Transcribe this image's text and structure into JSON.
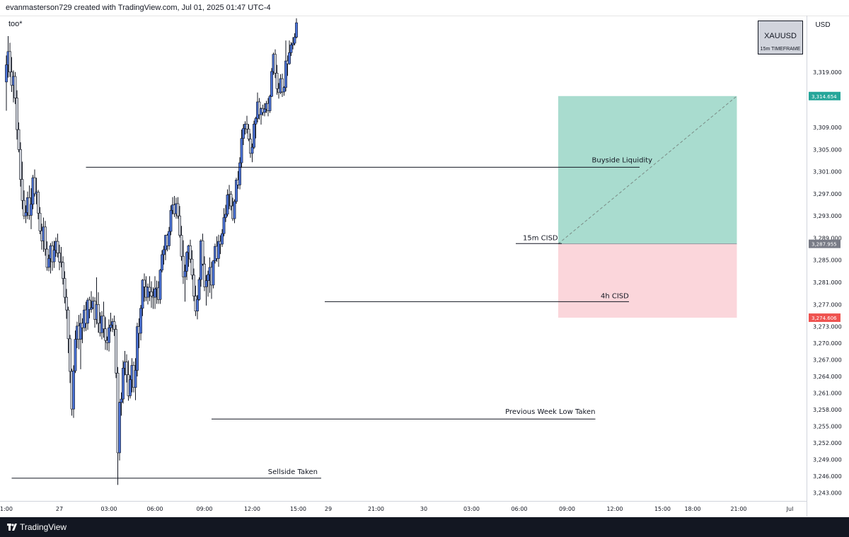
{
  "header": {
    "attribution": "evanmasterson729 created with TradingView.com, Jul 01, 2025 01:47 UTC-4",
    "chart_name": "too*",
    "currency": "USD"
  },
  "footer": {
    "brand": "TradingView"
  },
  "symbol_box": {
    "symbol": "XAUUSD",
    "timeframe": "15m TIMEFRAME"
  },
  "colors": {
    "up_candle": "#4a72d8",
    "down_candle": "#d1d4dc",
    "wick": "#131722",
    "target_zone": "#a9dccf",
    "stop_zone": "#fbd6db",
    "target_badge": "#26a69a",
    "entry_badge": "#787b86",
    "stop_badge": "#ef5350"
  },
  "chart_data": {
    "type": "candlestick",
    "symbol": "XAUUSD",
    "timeframe": "15m",
    "ylim": [
      3241.5,
      3329.2
    ],
    "y_ticks": [
      "3,319.000",
      "3,309.000",
      "3,305.000",
      "3,301.000",
      "3,297.000",
      "3,293.000",
      "3,289.000",
      "3,285.000",
      "3,281.000",
      "3,277.000",
      "3,273.000",
      "3,270.000",
      "3,267.000",
      "3,264.000",
      "3,261.000",
      "3,258.000",
      "3,255.000",
      "3,252.000",
      "3,249.000",
      "3,246.000",
      "3,243.000"
    ],
    "x_ticks": [
      {
        "label": "1:00",
        "t": 0
      },
      {
        "label": "27",
        "t": 30
      },
      {
        "label": "03:00",
        "t": 58
      },
      {
        "label": "06:00",
        "t": 84
      },
      {
        "label": "09:00",
        "t": 112
      },
      {
        "label": "12:00",
        "t": 139
      },
      {
        "label": "15:00",
        "t": 165
      },
      {
        "label": "29",
        "t": 182
      },
      {
        "label": "21:00",
        "t": 209
      },
      {
        "label": "30",
        "t": 236
      },
      {
        "label": "03:00",
        "t": 263
      },
      {
        "label": "06:00",
        "t": 290
      },
      {
        "label": "09:00",
        "t": 317
      },
      {
        "label": "12:00",
        "t": 344
      },
      {
        "label": "15:00",
        "t": 371
      },
      {
        "label": "18:00",
        "t": 388
      },
      {
        "label": "21:00",
        "t": 414
      },
      {
        "label": "Jul",
        "t": 443
      }
    ],
    "price_badges": [
      {
        "label": "3,314.654",
        "value": 3314.654,
        "role": "target"
      },
      {
        "label": "3,287.955",
        "value": 3287.955,
        "role": "entry"
      },
      {
        "label": "3,274.606",
        "value": 3274.606,
        "role": "stop"
      }
    ],
    "levels": [
      {
        "label": "Buyside Liquidity",
        "price": 3301.8,
        "t_start": 45,
        "t_end": 358
      },
      {
        "label": "15m CISD",
        "price": 3288.0,
        "t_start": 288,
        "t_end": 314
      },
      {
        "label": "4h CISD",
        "price": 3277.5,
        "t_start": 180,
        "t_end": 352
      },
      {
        "label": "Previous Week Low Taken",
        "price": 3256.3,
        "t_start": 116,
        "t_end": 333
      },
      {
        "label": "Sellside Taken",
        "price": 3245.6,
        "t_start": 3,
        "t_end": 178
      }
    ],
    "position": {
      "t_start": 312,
      "t_end": 413,
      "entry": 3287.955,
      "target": 3314.654,
      "stop": 3274.606
    },
    "ohlc": [
      [
        3317.2,
        3322.0,
        3312.0,
        3320.3
      ],
      [
        3320.3,
        3325.5,
        3318.0,
        3322.7
      ],
      [
        3322.7,
        3324.3,
        3318.1,
        3319.0
      ],
      [
        3319.0,
        3321.7,
        3315.4,
        3316.6
      ],
      [
        3316.6,
        3319.3,
        3313.5,
        3318.2
      ],
      [
        3318.2,
        3319.0,
        3313.2,
        3314.3
      ],
      [
        3314.3,
        3315.7,
        3306.8,
        3308.6
      ],
      [
        3308.6,
        3309.9,
        3304.5,
        3305.0
      ],
      [
        3305.0,
        3306.3,
        3298.3,
        3299.6
      ],
      [
        3299.6,
        3302.8,
        3294.2,
        3295.8
      ],
      [
        3295.8,
        3297.6,
        3292.4,
        3293.0
      ],
      [
        3293.0,
        3294.9,
        3291.7,
        3293.6
      ],
      [
        3293.6,
        3297.4,
        3292.4,
        3296.3
      ],
      [
        3296.3,
        3298.5,
        3292.3,
        3293.1
      ],
      [
        3293.1,
        3298.0,
        3290.6,
        3295.1
      ],
      [
        3295.1,
        3300.4,
        3294.2,
        3299.9
      ],
      [
        3299.9,
        3301.4,
        3296.5,
        3297.0
      ],
      [
        3297.0,
        3299.9,
        3295.1,
        3297.3
      ],
      [
        3297.3,
        3297.7,
        3292.4,
        3293.5
      ],
      [
        3293.5,
        3294.6,
        3289.7,
        3290.3
      ],
      [
        3290.3,
        3291.6,
        3286.9,
        3288.5
      ],
      [
        3288.5,
        3292.7,
        3286.5,
        3291.0
      ],
      [
        3291.0,
        3292.1,
        3285.8,
        3287.0
      ],
      [
        3287.0,
        3288.4,
        3283.1,
        3283.7
      ],
      [
        3283.7,
        3286.0,
        3283.0,
        3285.3
      ],
      [
        3285.3,
        3288.1,
        3282.6,
        3287.6
      ],
      [
        3287.6,
        3288.4,
        3283.1,
        3284.7
      ],
      [
        3284.7,
        3288.5,
        3283.6,
        3286.8
      ],
      [
        3286.8,
        3289.1,
        3285.6,
        3288.4
      ],
      [
        3288.4,
        3289.8,
        3285.5,
        3286.3
      ],
      [
        3286.3,
        3287.8,
        3283.2,
        3284.7
      ],
      [
        3284.7,
        3287.4,
        3283.7,
        3284.6
      ],
      [
        3284.6,
        3285.7,
        3280.6,
        3281.7
      ],
      [
        3281.7,
        3283.0,
        3277.2,
        3278.3
      ],
      [
        3278.3,
        3279.8,
        3274.4,
        3276.0
      ],
      [
        3276.0,
        3276.6,
        3268.2,
        3270.8
      ],
      [
        3270.8,
        3271.5,
        3262.8,
        3264.9
      ],
      [
        3264.9,
        3265.4,
        3256.9,
        3258.1
      ],
      [
        3258.1,
        3266.0,
        3256.5,
        3265.0
      ],
      [
        3265.0,
        3272.3,
        3264.6,
        3270.7
      ],
      [
        3270.7,
        3273.9,
        3269.1,
        3273.1
      ],
      [
        3273.1,
        3275.1,
        3268.9,
        3270.7
      ],
      [
        3270.7,
        3275.4,
        3265.3,
        3273.6
      ],
      [
        3273.6,
        3274.5,
        3270.0,
        3272.8
      ],
      [
        3272.8,
        3276.9,
        3272.1,
        3276.0
      ],
      [
        3276.0,
        3277.5,
        3272.2,
        3273.6
      ],
      [
        3273.6,
        3278.2,
        3272.4,
        3277.8
      ],
      [
        3277.8,
        3278.4,
        3274.5,
        3276.1
      ],
      [
        3276.1,
        3279.4,
        3275.5,
        3276.4
      ],
      [
        3276.4,
        3278.4,
        3276.2,
        3277.6
      ],
      [
        3277.6,
        3278.3,
        3272.8,
        3274.3
      ],
      [
        3274.3,
        3281.9,
        3273.4,
        3277.0
      ],
      [
        3277.0,
        3279.2,
        3271.9,
        3273.6
      ],
      [
        3273.6,
        3275.6,
        3271.2,
        3271.9
      ],
      [
        3271.9,
        3275.8,
        3270.7,
        3274.9
      ],
      [
        3274.9,
        3277.5,
        3271.0,
        3272.6
      ],
      [
        3272.6,
        3274.7,
        3268.8,
        3270.5
      ],
      [
        3270.5,
        3271.2,
        3268.7,
        3270.1
      ],
      [
        3270.1,
        3274.3,
        3268.5,
        3272.8
      ],
      [
        3272.8,
        3275.5,
        3272.1,
        3273.3
      ],
      [
        3273.3,
        3274.5,
        3272.0,
        3273.9
      ],
      [
        3273.9,
        3275.0,
        3271.3,
        3272.5
      ],
      [
        3272.5,
        3273.3,
        3263.7,
        3264.6
      ],
      [
        3264.6,
        3265.7,
        3244.4,
        3250.2
      ],
      [
        3250.2,
        3259.4,
        3248.8,
        3259.3
      ],
      [
        3259.3,
        3261.1,
        3256.9,
        3259.9
      ],
      [
        3259.9,
        3266.9,
        3259.1,
        3265.5
      ],
      [
        3265.5,
        3268.6,
        3264.2,
        3266.6
      ],
      [
        3266.6,
        3268.0,
        3262.9,
        3264.3
      ],
      [
        3264.3,
        3266.9,
        3259.6,
        3260.5
      ],
      [
        3260.5,
        3264.2,
        3260.0,
        3263.4
      ],
      [
        3263.4,
        3267.3,
        3261.1,
        3266.0
      ],
      [
        3266.0,
        3266.7,
        3261.1,
        3262.0
      ],
      [
        3262.0,
        3267.3,
        3259.7,
        3265.1
      ],
      [
        3265.1,
        3273.7,
        3264.0,
        3273.0
      ],
      [
        3273.0,
        3274.5,
        3269.1,
        3271.8
      ],
      [
        3271.8,
        3276.9,
        3270.5,
        3276.3
      ],
      [
        3276.3,
        3281.6,
        3274.9,
        3281.4
      ],
      [
        3281.4,
        3282.6,
        3277.5,
        3280.2
      ],
      [
        3280.2,
        3282.1,
        3277.6,
        3278.3
      ],
      [
        3278.3,
        3280.8,
        3277.0,
        3280.1
      ],
      [
        3280.1,
        3282.1,
        3277.6,
        3279.3
      ],
      [
        3279.3,
        3281.2,
        3276.4,
        3278.5
      ],
      [
        3278.5,
        3280.1,
        3276.2,
        3278.3
      ],
      [
        3278.3,
        3282.1,
        3276.2,
        3279.8
      ],
      [
        3279.8,
        3281.3,
        3277.1,
        3280.0
      ],
      [
        3280.0,
        3281.2,
        3277.1,
        3277.9
      ],
      [
        3277.9,
        3283.4,
        3277.1,
        3283.2
      ],
      [
        3283.2,
        3286.8,
        3282.8,
        3286.0
      ],
      [
        3286.0,
        3287.6,
        3284.2,
        3286.9
      ],
      [
        3286.9,
        3289.6,
        3285.0,
        3289.5
      ],
      [
        3289.5,
        3289.8,
        3286.6,
        3287.6
      ],
      [
        3287.6,
        3291.0,
        3286.9,
        3290.2
      ],
      [
        3290.2,
        3294.9,
        3289.5,
        3294.0
      ],
      [
        3294.0,
        3296.4,
        3293.3,
        3295.0
      ],
      [
        3295.0,
        3296.6,
        3292.8,
        3293.4
      ],
      [
        3293.4,
        3296.3,
        3292.5,
        3295.2
      ],
      [
        3295.2,
        3296.4,
        3292.5,
        3293.0
      ],
      [
        3293.0,
        3294.8,
        3289.1,
        3289.5
      ],
      [
        3289.5,
        3291.2,
        3284.9,
        3285.7
      ],
      [
        3285.7,
        3288.6,
        3280.7,
        3282.0
      ],
      [
        3282.0,
        3284.2,
        3277.5,
        3283.0
      ],
      [
        3283.0,
        3286.6,
        3281.4,
        3286.4
      ],
      [
        3286.4,
        3287.8,
        3283.8,
        3287.6
      ],
      [
        3287.6,
        3288.7,
        3284.5,
        3285.2
      ],
      [
        3285.2,
        3286.8,
        3281.5,
        3282.3
      ],
      [
        3282.3,
        3283.5,
        3277.6,
        3278.5
      ],
      [
        3278.5,
        3280.4,
        3274.9,
        3275.8
      ],
      [
        3275.8,
        3278.7,
        3274.3,
        3277.9
      ],
      [
        3277.9,
        3281.9,
        3277.7,
        3281.5
      ],
      [
        3281.5,
        3288.8,
        3280.2,
        3288.5
      ],
      [
        3288.5,
        3289.8,
        3284.0,
        3284.3
      ],
      [
        3284.3,
        3285.7,
        3279.4,
        3280.2
      ],
      [
        3280.2,
        3282.3,
        3276.8,
        3281.3
      ],
      [
        3281.3,
        3283.1,
        3278.4,
        3282.4
      ],
      [
        3282.4,
        3285.5,
        3279.1,
        3283.7
      ],
      [
        3283.7,
        3284.7,
        3278.0,
        3280.5
      ],
      [
        3280.5,
        3285.0,
        3279.9,
        3284.9
      ],
      [
        3284.9,
        3288.0,
        3284.4,
        3287.5
      ],
      [
        3287.5,
        3289.3,
        3284.7,
        3285.3
      ],
      [
        3285.3,
        3289.6,
        3283.8,
        3288.4
      ],
      [
        3288.4,
        3289.5,
        3286.1,
        3287.9
      ],
      [
        3287.9,
        3290.6,
        3287.4,
        3289.8
      ],
      [
        3289.8,
        3294.4,
        3289.3,
        3292.7
      ],
      [
        3292.7,
        3295.0,
        3291.9,
        3293.3
      ],
      [
        3293.3,
        3297.8,
        3292.9,
        3296.8
      ],
      [
        3296.8,
        3298.6,
        3294.2,
        3296.9
      ],
      [
        3296.9,
        3297.5,
        3294.0,
        3294.8
      ],
      [
        3294.8,
        3296.3,
        3292.1,
        3292.5
      ],
      [
        3292.5,
        3296.0,
        3291.7,
        3295.6
      ],
      [
        3295.6,
        3299.9,
        3295.2,
        3299.5
      ],
      [
        3299.5,
        3301.1,
        3297.9,
        3298.6
      ],
      [
        3298.6,
        3303.6,
        3297.8,
        3302.6
      ],
      [
        3302.6,
        3308.6,
        3301.7,
        3307.0
      ],
      [
        3307.0,
        3309.6,
        3305.8,
        3308.8
      ],
      [
        3308.8,
        3310.1,
        3307.7,
        3309.6
      ],
      [
        3309.6,
        3311.1,
        3307.9,
        3308.7
      ],
      [
        3308.7,
        3309.6,
        3306.5,
        3306.9
      ],
      [
        3306.9,
        3307.9,
        3303.5,
        3304.3
      ],
      [
        3304.3,
        3306.1,
        3302.7,
        3305.4
      ],
      [
        3305.4,
        3310.2,
        3305.1,
        3309.6
      ],
      [
        3309.6,
        3310.9,
        3307.0,
        3310.6
      ],
      [
        3310.6,
        3315.3,
        3309.9,
        3313.6
      ],
      [
        3313.6,
        3314.3,
        3310.4,
        3311.3
      ],
      [
        3311.3,
        3312.6,
        3309.5,
        3312.4
      ],
      [
        3312.4,
        3313.1,
        3311.1,
        3311.7
      ],
      [
        3311.7,
        3313.4,
        3311.0,
        3312.3
      ],
      [
        3312.3,
        3313.8,
        3311.6,
        3313.3
      ],
      [
        3313.3,
        3314.3,
        3311.0,
        3312.0
      ],
      [
        3312.0,
        3314.9,
        3311.6,
        3314.6
      ],
      [
        3314.6,
        3319.7,
        3314.5,
        3319.1
      ],
      [
        3319.1,
        3322.5,
        3318.5,
        3322.2
      ],
      [
        3322.2,
        3323.1,
        3317.9,
        3318.8
      ],
      [
        3318.8,
        3320.3,
        3314.9,
        3316.0
      ],
      [
        3316.0,
        3317.0,
        3314.2,
        3315.3
      ],
      [
        3315.3,
        3318.6,
        3315.0,
        3317.8
      ],
      [
        3317.8,
        3318.7,
        3314.5,
        3315.4
      ],
      [
        3315.4,
        3316.4,
        3314.7,
        3316.2
      ],
      [
        3316.2,
        3324.7,
        3315.5,
        3321.0
      ],
      [
        3321.0,
        3322.0,
        3318.3,
        3320.5
      ],
      [
        3320.5,
        3324.7,
        3320.3,
        3322.5
      ],
      [
        3322.5,
        3324.4,
        3321.9,
        3323.9
      ],
      [
        3323.9,
        3325.3,
        3323.1,
        3324.2
      ],
      [
        3324.2,
        3326.0,
        3323.8,
        3325.3
      ],
      [
        3325.3,
        3328.7,
        3325.1,
        3327.9
      ]
    ]
  }
}
